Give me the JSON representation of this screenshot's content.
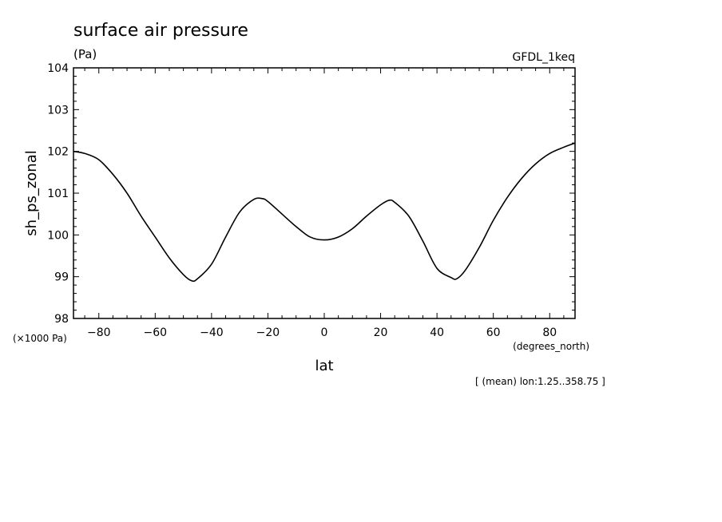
{
  "chart_data": {
    "type": "line",
    "title": "surface air pressure",
    "units": "(Pa)",
    "model": "GFDL_1keq",
    "ylabel": "sh_ps_zonal",
    "xlabel": "lat",
    "y_scale_note": "(×1000 Pa)",
    "x_units": "(degrees_north)",
    "footnote": "[ (mean) lon:1.25..358.75 ]",
    "xlim": [
      -89,
      89
    ],
    "ylim": [
      98,
      104
    ],
    "x_ticks": [
      -80,
      -60,
      -40,
      -20,
      0,
      20,
      40,
      60,
      80
    ],
    "y_ticks": [
      98,
      99,
      100,
      101,
      102,
      103,
      104
    ],
    "grid": false,
    "series": [
      {
        "x": [
          -89,
          -85,
          -80,
          -75,
          -70,
          -65,
          -60,
          -55,
          -50,
          -47,
          -45,
          -40,
          -35,
          -30,
          -25,
          -22,
          -20,
          -15,
          -10,
          -5,
          0,
          5,
          10,
          15,
          20,
          23,
          25,
          30,
          35,
          40,
          45,
          47,
          50,
          55,
          60,
          65,
          70,
          75,
          80,
          85,
          89
        ],
        "y": [
          102.0,
          101.95,
          101.8,
          101.45,
          101.0,
          100.45,
          99.95,
          99.45,
          99.05,
          98.9,
          98.95,
          99.3,
          99.95,
          100.55,
          100.85,
          100.87,
          100.8,
          100.5,
          100.2,
          99.95,
          99.88,
          99.95,
          100.15,
          100.45,
          100.72,
          100.83,
          100.78,
          100.45,
          99.85,
          99.2,
          98.98,
          98.95,
          99.15,
          99.7,
          100.35,
          100.9,
          101.35,
          101.7,
          101.95,
          102.1,
          102.2
        ]
      }
    ]
  }
}
